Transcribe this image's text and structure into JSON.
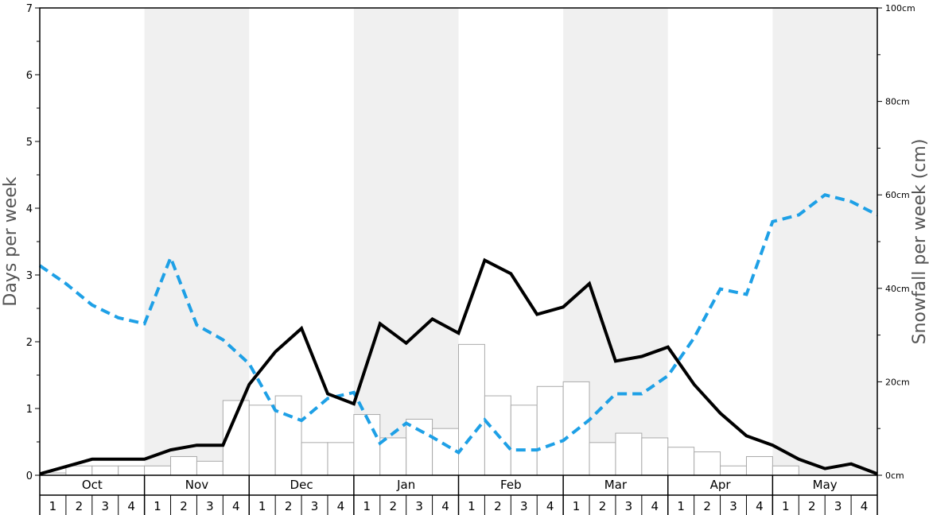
{
  "chart_data": {
    "type": "bar",
    "months": [
      "Oct",
      "Nov",
      "Dec",
      "Jan",
      "Feb",
      "Mar",
      "Apr",
      "May"
    ],
    "weeks": [
      "1",
      "2",
      "3",
      "4"
    ],
    "left_axis": {
      "label": "Days per week",
      "ylim": [
        0,
        7
      ],
      "ticks": [
        "0",
        "1",
        "2",
        "3",
        "4",
        "5",
        "6",
        "7"
      ]
    },
    "right_axis": {
      "label": "Snowfall per week (cm)",
      "ylim": [
        0,
        100
      ],
      "ticks": [
        "0cm",
        "20cm",
        "40cm",
        "60cm",
        "80cm",
        "100cm"
      ]
    },
    "snowfall_bars_cm": [
      0.5,
      2,
      2,
      2,
      2,
      4,
      3,
      16,
      15,
      17,
      7,
      7,
      13,
      8,
      12,
      10,
      28,
      17,
      15,
      19,
      20,
      7,
      9,
      8,
      6,
      5,
      2,
      4,
      2,
      0,
      0,
      0
    ],
    "snowfall_days_line": [
      0.02,
      0.13,
      0.24,
      0.24,
      0.24,
      0.38,
      0.45,
      0.45,
      1.36,
      1.85,
      2.2,
      1.22,
      1.07,
      2.27,
      1.98,
      2.34,
      2.13,
      3.22,
      3.02,
      2.41,
      2.52,
      2.87,
      1.71,
      1.78,
      1.92,
      1.36,
      0.93,
      0.59,
      0.45,
      0.24,
      0.1,
      0.17,
      0.02
    ],
    "dashed_line_values": [
      3.14,
      2.87,
      2.55,
      2.36,
      2.27,
      3.26,
      2.25,
      2.03,
      1.67,
      0.97,
      0.82,
      1.15,
      1.24,
      0.48,
      0.78,
      0.57,
      0.34,
      0.83,
      0.38,
      0.38,
      0.52,
      0.83,
      1.22,
      1.22,
      1.49,
      2.06,
      2.79,
      2.71,
      3.8,
      3.9,
      4.2,
      4.1,
      3.9
    ],
    "series_colors": {
      "solid": "#000000",
      "dashed": "#1ea0e6",
      "bars_fill": "#ffffff",
      "bars_stroke": "#aaaaaa",
      "band_shade": "#f0f0f0"
    },
    "shaded_months": [
      "Nov",
      "Jan",
      "Mar",
      "May"
    ]
  }
}
